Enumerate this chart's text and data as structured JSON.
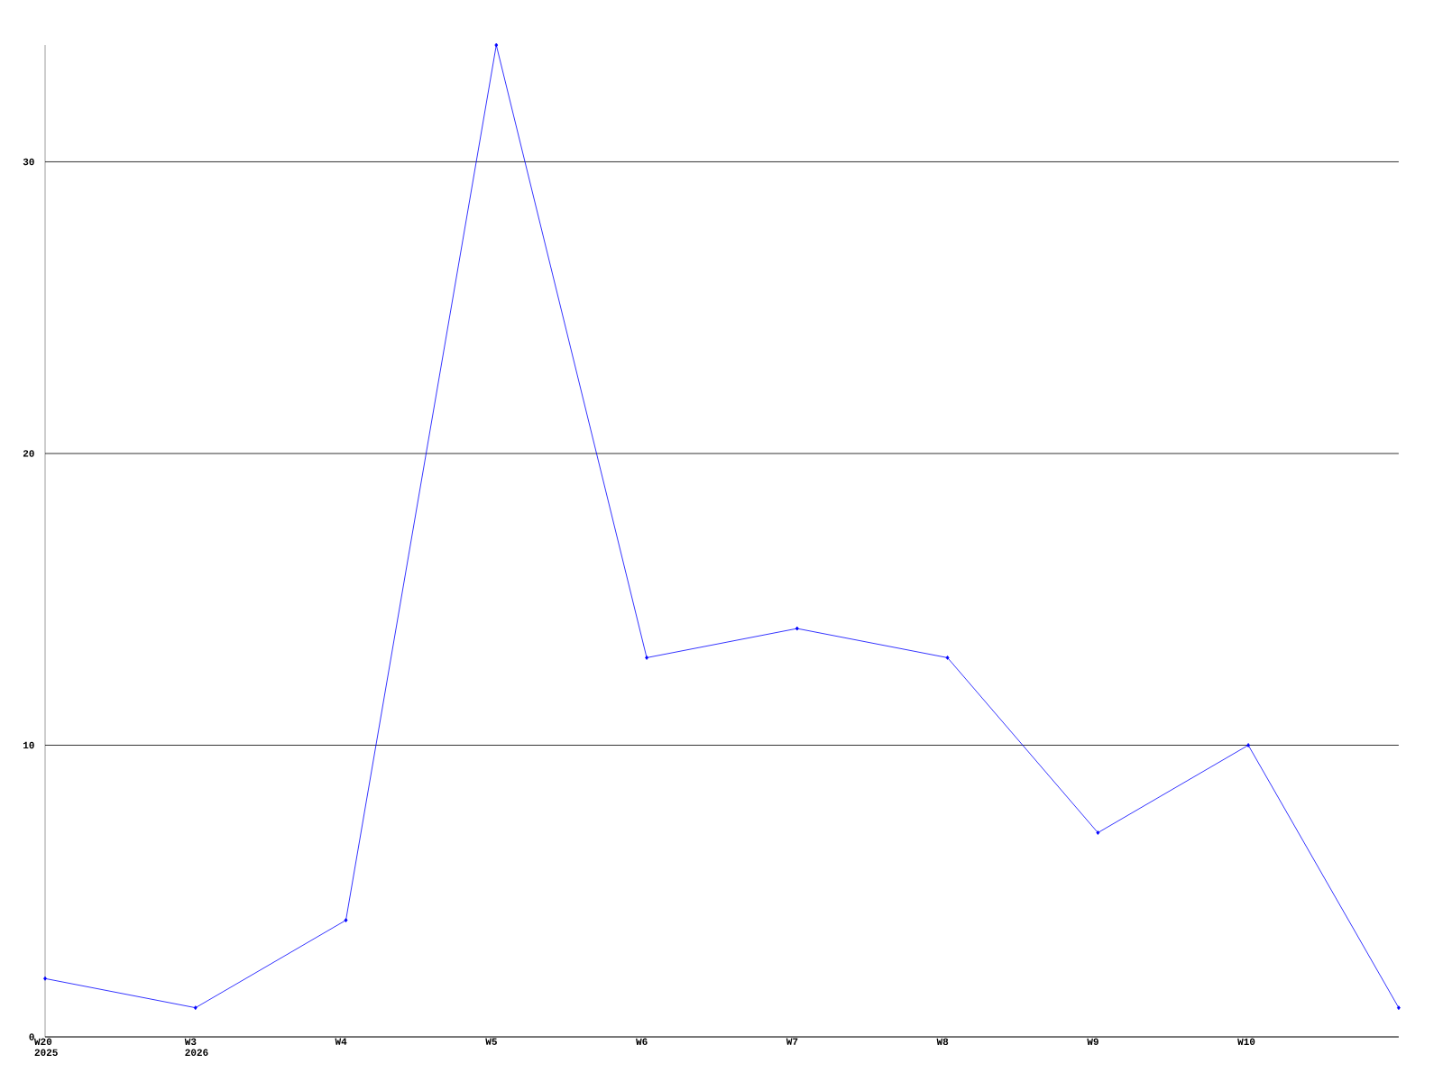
{
  "chart_data": {
    "type": "line",
    "categories": [
      "W20 2025",
      "W3 2026",
      "W4",
      "W5",
      "W6",
      "W7",
      "W8",
      "W9",
      "W10",
      null
    ],
    "values": [
      2,
      1,
      4,
      34,
      13,
      14,
      13,
      7,
      10,
      1
    ],
    "color": "#0000ff",
    "marker": "diamond",
    "ylim": [
      0,
      34
    ],
    "yticks": [
      0,
      10,
      20,
      30
    ],
    "grid": "y"
  }
}
